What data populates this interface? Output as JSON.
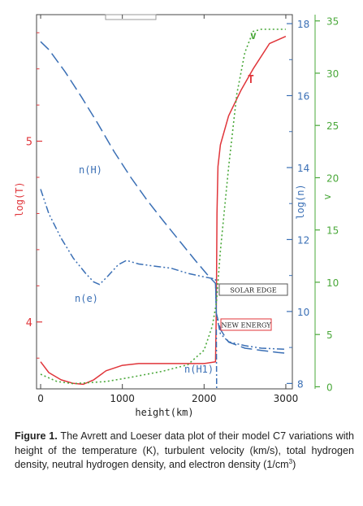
{
  "chart_data": {
    "type": "line",
    "title": "",
    "xlabel": "height(km)",
    "xlim": [
      -50,
      3080
    ],
    "x_ticks": [
      "0",
      "1000",
      "2000",
      "3000"
    ],
    "axes": {
      "logT": {
        "label": "log(T)",
        "ticks": [
          "4",
          "5"
        ],
        "range": [
          3.63,
          5.7
        ],
        "color": "#e0353a"
      },
      "logn": {
        "label": "log(n)",
        "ticks": [
          "8",
          "10",
          "12",
          "14",
          "16",
          "18"
        ],
        "range": [
          7.85,
          18.25
        ],
        "color": "#3a6fb5"
      },
      "v": {
        "label": "v",
        "ticks": [
          "0",
          "5",
          "10",
          "15",
          "20",
          "25",
          "30",
          "35"
        ],
        "range": [
          -0.2,
          35.6
        ],
        "color": "#4aa83a"
      }
    },
    "series": [
      {
        "name": "T",
        "axis": "logT",
        "color": "#e0353a",
        "dash": "solid",
        "points": [
          [
            0,
            3.78
          ],
          [
            100,
            3.72
          ],
          [
            250,
            3.68
          ],
          [
            400,
            3.66
          ],
          [
            520,
            3.655
          ],
          [
            650,
            3.68
          ],
          [
            800,
            3.73
          ],
          [
            1000,
            3.76
          ],
          [
            1200,
            3.77
          ],
          [
            1600,
            3.77
          ],
          [
            2000,
            3.77
          ],
          [
            2140,
            3.78
          ],
          [
            2150,
            4.08
          ],
          [
            2158,
            4.6
          ],
          [
            2170,
            4.86
          ],
          [
            2200,
            4.98
          ],
          [
            2300,
            5.14
          ],
          [
            2450,
            5.28
          ],
          [
            2600,
            5.4
          ],
          [
            2800,
            5.54
          ],
          [
            3000,
            5.58
          ]
        ]
      },
      {
        "name": "n(H)",
        "axis": "logn",
        "color": "#3a6fb5",
        "dash": "long",
        "points": [
          [
            0,
            17.5
          ],
          [
            100,
            17.28
          ],
          [
            300,
            16.66
          ],
          [
            500,
            15.96
          ],
          [
            700,
            15.22
          ],
          [
            900,
            14.44
          ],
          [
            1100,
            13.74
          ],
          [
            1300,
            13.1
          ],
          [
            1500,
            12.52
          ],
          [
            1700,
            11.96
          ],
          [
            1900,
            11.4
          ],
          [
            2050,
            11.0
          ],
          [
            2140,
            10.78
          ],
          [
            2150,
            9.95
          ],
          [
            2200,
            9.5
          ],
          [
            2300,
            9.15
          ],
          [
            2500,
            8.98
          ],
          [
            2700,
            8.92
          ],
          [
            2900,
            8.86
          ],
          [
            3000,
            8.84
          ]
        ]
      },
      {
        "name": "n(e)",
        "axis": "logn",
        "color": "#3a6fb5",
        "dash": "dashdotdot",
        "points": [
          [
            0,
            13.4
          ],
          [
            100,
            12.72
          ],
          [
            250,
            12.04
          ],
          [
            400,
            11.48
          ],
          [
            550,
            11.06
          ],
          [
            650,
            10.82
          ],
          [
            720,
            10.75
          ],
          [
            820,
            10.98
          ],
          [
            950,
            11.3
          ],
          [
            1050,
            11.42
          ],
          [
            1200,
            11.32
          ],
          [
            1400,
            11.26
          ],
          [
            1600,
            11.2
          ],
          [
            1800,
            11.06
          ],
          [
            2000,
            10.96
          ],
          [
            2140,
            10.9
          ],
          [
            2150,
            9.92
          ],
          [
            2200,
            9.38
          ],
          [
            2300,
            9.16
          ],
          [
            2500,
            9.05
          ],
          [
            2700,
            8.98
          ],
          [
            3000,
            8.95
          ]
        ]
      },
      {
        "name": "n(H1)",
        "axis": "logn",
        "color": "#3a6fb5",
        "dash": "dashdot",
        "points": [
          [
            2150,
            9.5
          ],
          [
            2152,
            8.6
          ],
          [
            2154,
            7.85
          ]
        ]
      },
      {
        "name": "v",
        "axis": "v",
        "color": "#4aa83a",
        "dash": "dotted",
        "points": [
          [
            0,
            1.2
          ],
          [
            200,
            0.5
          ],
          [
            400,
            0.3
          ],
          [
            800,
            0.5
          ],
          [
            1100,
            0.9
          ],
          [
            1500,
            1.5
          ],
          [
            1800,
            2.1
          ],
          [
            2000,
            3.5
          ],
          [
            2100,
            5.8
          ],
          [
            2150,
            8.0
          ],
          [
            2200,
            13
          ],
          [
            2300,
            21
          ],
          [
            2400,
            28
          ],
          [
            2500,
            32
          ],
          [
            2600,
            34
          ],
          [
            2700,
            34.2
          ],
          [
            3000,
            34.2
          ]
        ]
      }
    ],
    "labels": [
      {
        "text": "n(H)",
        "color": "#3a6fb5"
      },
      {
        "text": "n(e)",
        "color": "#3a6fb5"
      },
      {
        "text": "n(H1)",
        "color": "#3a6fb5"
      },
      {
        "text": "T",
        "color": "#e0353a"
      },
      {
        "text": "v",
        "color": "#4aa83a"
      }
    ],
    "annotations": [
      {
        "text": "SOLAR EDGE",
        "border": "#555555"
      },
      {
        "text": "NEW ENERGY",
        "border": "#e0353a"
      }
    ]
  },
  "caption": {
    "figure_label": "Figure 1.",
    "text": " The Avrett and Loeser data plot of their model C7 variations with height of the temperature (K), turbulent velocity (km/s), total hydrogen density, neutral hydrogen density, and electron density (1/cm",
    "sup": "3",
    "tail": ")"
  }
}
